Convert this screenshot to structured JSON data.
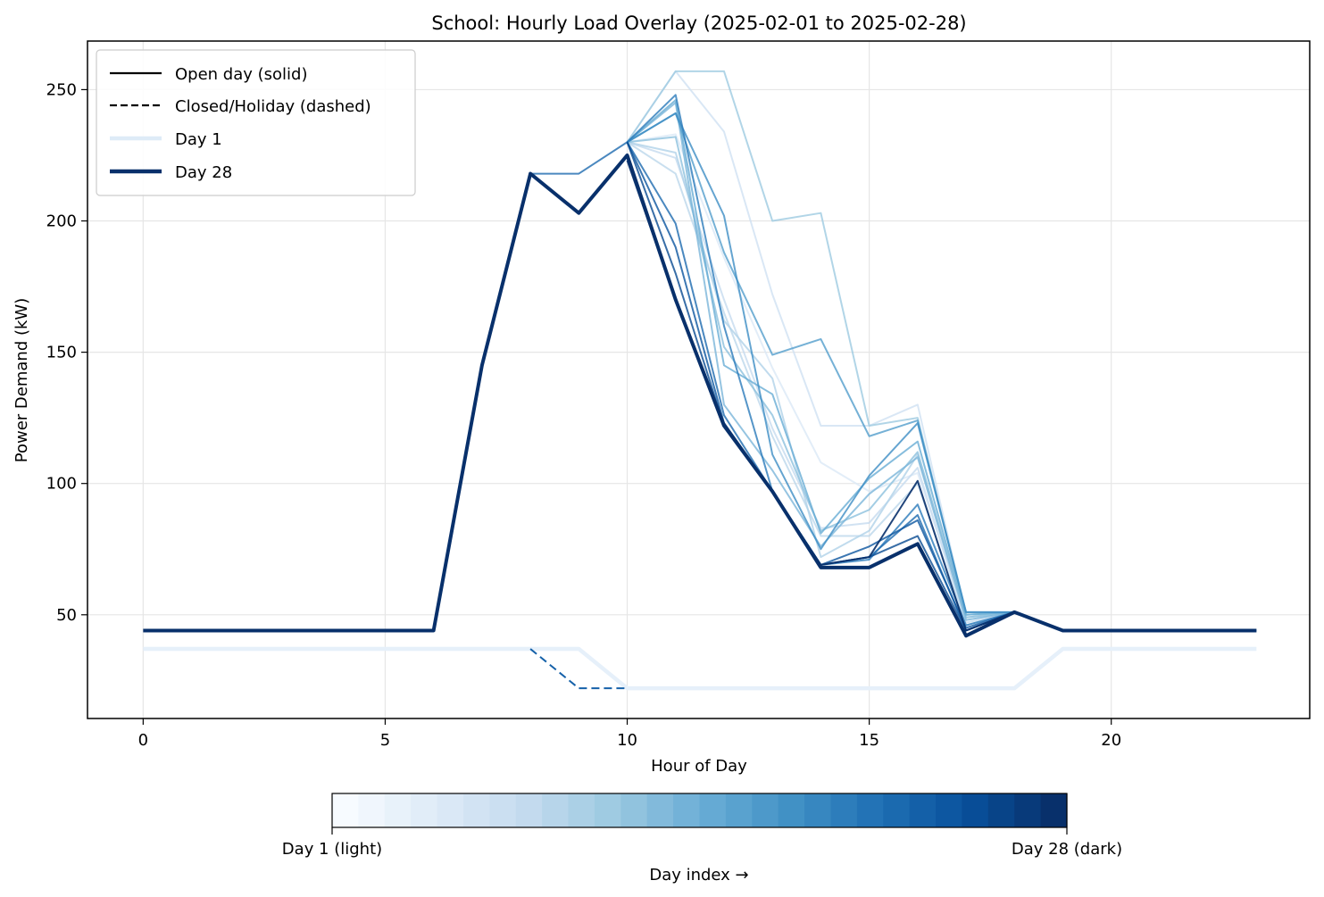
{
  "chart_data": {
    "type": "line",
    "title": "School: Hourly Load Overlay (2025-02-01 to 2025-02-28)",
    "xlabel": "Hour of Day",
    "ylabel": "Power Demand (kW)",
    "xlim": [
      -1.15,
      24.1
    ],
    "ylim": [
      10.5,
      268.5
    ],
    "xticks": [
      0,
      5,
      10,
      15,
      20
    ],
    "yticks": [
      50,
      100,
      150,
      200,
      250
    ],
    "grid": true,
    "legend": {
      "placement": "top-left",
      "entries": [
        {
          "label": "Open day (solid)",
          "style": "solid",
          "color": "#000000"
        },
        {
          "label": "Closed/Holiday (dashed)",
          "style": "dashed",
          "color": "#000000"
        },
        {
          "label": "Day 1",
          "style": "solid-thick",
          "color": "#deebf7"
        },
        {
          "label": "Day 28",
          "style": "solid-thick",
          "color": "#08306b"
        }
      ]
    },
    "colorbar": {
      "label": "Day index →",
      "left_label": "Day 1 (light)",
      "right_label": "Day 28 (dark)",
      "n": 28,
      "colormap": "Blues"
    },
    "series": [
      {
        "day": 1,
        "closed": true,
        "color": "#e6f0fa",
        "width": 4.5,
        "alpha": 1,
        "values": [
          37,
          37,
          37,
          37,
          37,
          37,
          37,
          37,
          37,
          37,
          22,
          22,
          22,
          22,
          22,
          22,
          22,
          22,
          22,
          37,
          37,
          37,
          37,
          37
        ]
      },
      {
        "day": 2,
        "closed": false,
        "color": "#dbe9f6",
        "width": 2,
        "alpha": 0.8,
        "values": [
          null,
          null,
          null,
          null,
          null,
          null,
          null,
          null,
          null,
          null,
          230,
          233,
          186,
          144,
          108,
          97,
          104,
          48,
          51,
          null,
          null,
          null,
          null,
          null
        ]
      },
      {
        "day": 3,
        "closed": false,
        "color": "#d0e1f2",
        "width": 2,
        "alpha": 0.8,
        "values": [
          null,
          null,
          null,
          null,
          null,
          null,
          null,
          null,
          null,
          null,
          230,
          257,
          234,
          172,
          122,
          122,
          130,
          50,
          51,
          null,
          null,
          null,
          null,
          null
        ]
      },
      {
        "day": 4,
        "closed": false,
        "color": "#c6dbef",
        "width": 2,
        "alpha": 0.8,
        "values": [
          null,
          null,
          null,
          null,
          null,
          null,
          null,
          null,
          null,
          null,
          230,
          224,
          170,
          121,
          83,
          85,
          106,
          47,
          51,
          null,
          null,
          null,
          null,
          null
        ]
      },
      {
        "day": 5,
        "closed": false,
        "color": "#bcd7eb",
        "width": 2,
        "alpha": 0.8,
        "values": [
          null,
          null,
          null,
          null,
          null,
          null,
          null,
          null,
          null,
          null,
          230,
          218,
          165,
          118,
          80,
          80,
          100,
          46,
          51,
          null,
          null,
          null,
          null,
          null
        ]
      },
      {
        "day": 6,
        "closed": false,
        "color": "#b0d2e8",
        "width": 2,
        "alpha": 0.8,
        "values": [
          null,
          null,
          null,
          null,
          null,
          null,
          null,
          null,
          null,
          null,
          230,
          226,
          162,
          140,
          72,
          82,
          111,
          49,
          51,
          null,
          null,
          null,
          null,
          null
        ]
      },
      {
        "day": 7,
        "closed": false,
        "color": "#9ecae1",
        "width": 2,
        "alpha": 0.8,
        "values": [
          null,
          null,
          null,
          null,
          null,
          null,
          null,
          null,
          null,
          null,
          230,
          257,
          257,
          200,
          203,
          122,
          125,
          50,
          51,
          null,
          null,
          null,
          null,
          null
        ]
      },
      {
        "day": 8,
        "closed": false,
        "color": "#8cc0dd",
        "width": 2,
        "alpha": 0.8,
        "values": [
          null,
          null,
          null,
          null,
          null,
          null,
          null,
          null,
          null,
          null,
          230,
          232,
          152,
          126,
          82,
          90,
          112,
          49,
          51,
          null,
          null,
          null,
          null,
          null
        ]
      },
      {
        "day": 9,
        "closed": false,
        "color": "#7ab5d9",
        "width": 2,
        "alpha": 0.8,
        "values": [
          null,
          null,
          null,
          null,
          null,
          null,
          null,
          null,
          null,
          null,
          230,
          245,
          130,
          105,
          76,
          96,
          110,
          48,
          51,
          null,
          null,
          null,
          null,
          null
        ]
      },
      {
        "day": 10,
        "closed": false,
        "color": "#68acd5",
        "width": 2,
        "alpha": 0.8,
        "values": [
          null,
          null,
          null,
          null,
          null,
          null,
          null,
          null,
          null,
          null,
          230,
          246,
          145,
          134,
          81,
          102,
          116,
          50,
          51,
          null,
          null,
          null,
          null,
          null
        ]
      },
      {
        "day": 11,
        "closed": false,
        "color": "#529dcc",
        "width": 2,
        "alpha": 0.8,
        "values": [
          null,
          null,
          null,
          null,
          null,
          null,
          null,
          null,
          null,
          null,
          230,
          241,
          188,
          149,
          155,
          118,
          124,
          51,
          51,
          null,
          null,
          null,
          null,
          null
        ]
      },
      {
        "day": 12,
        "closed": false,
        "color": "#3d8dc4",
        "width": 2,
        "alpha": 0.8,
        "values": [
          null,
          null,
          null,
          null,
          null,
          null,
          null,
          null,
          null,
          null,
          230,
          241,
          202,
          111,
          75,
          103,
          123,
          51,
          51,
          null,
          null,
          null,
          null,
          null
        ]
      },
      {
        "day": 13,
        "closed": false,
        "color": "#2b7bba",
        "width": 2,
        "alpha": 0.8,
        "values": [
          null,
          null,
          null,
          null,
          null,
          null,
          null,
          null,
          null,
          null,
          230,
          248,
          160,
          97,
          69,
          71,
          92,
          46,
          51,
          null,
          null,
          null,
          null,
          null
        ]
      },
      {
        "day": 14,
        "closed": false,
        "color": "#1d6aaf",
        "width": 2,
        "alpha": 0.8,
        "values": [
          null,
          null,
          null,
          null,
          null,
          null,
          null,
          null,
          218,
          218,
          230,
          199,
          126,
          97,
          69,
          72,
          88,
          44,
          51,
          44,
          44,
          44,
          44,
          44
        ]
      },
      {
        "day": 15,
        "closed": true,
        "color": "#1561a9",
        "width": 2,
        "alpha": 1,
        "dash": true,
        "values": [
          null,
          null,
          null,
          null,
          null,
          null,
          null,
          null,
          37,
          22,
          22,
          null,
          null,
          null,
          null,
          null,
          null,
          null,
          null,
          null,
          null,
          null,
          null,
          null
        ]
      },
      {
        "day": 16,
        "closed": false,
        "color": "#0b559f",
        "width": 2,
        "alpha": 0.8,
        "values": [
          null,
          null,
          null,
          null,
          null,
          null,
          null,
          null,
          null,
          null,
          230,
          190,
          123,
          97,
          69,
          76,
          86,
          45,
          51,
          null,
          null,
          null,
          null,
          null
        ]
      },
      {
        "day": 17,
        "closed": false,
        "color": "#084a91",
        "width": 2,
        "alpha": 0.8,
        "values": [
          null,
          null,
          null,
          null,
          null,
          null,
          null,
          null,
          null,
          null,
          230,
          180,
          122,
          97,
          69,
          72,
          80,
          44,
          51,
          null,
          null,
          null,
          null,
          null
        ]
      },
      {
        "day": 18,
        "closed": false,
        "color": "#08306b",
        "width": 2,
        "alpha": 0.9,
        "values": [
          null,
          null,
          null,
          null,
          null,
          null,
          null,
          null,
          null,
          null,
          223,
          170,
          123,
          97,
          69,
          72,
          101,
          44,
          51,
          null,
          null,
          null,
          null,
          null
        ]
      },
      {
        "day": 28,
        "closed": false,
        "color": "#08306b",
        "width": 4,
        "alpha": 1,
        "values": [
          44,
          44,
          44,
          44,
          44,
          44,
          44,
          145,
          218,
          203,
          225,
          170,
          122,
          97,
          68,
          68,
          77,
          42,
          51,
          44,
          44,
          44,
          44,
          44
        ]
      }
    ]
  }
}
